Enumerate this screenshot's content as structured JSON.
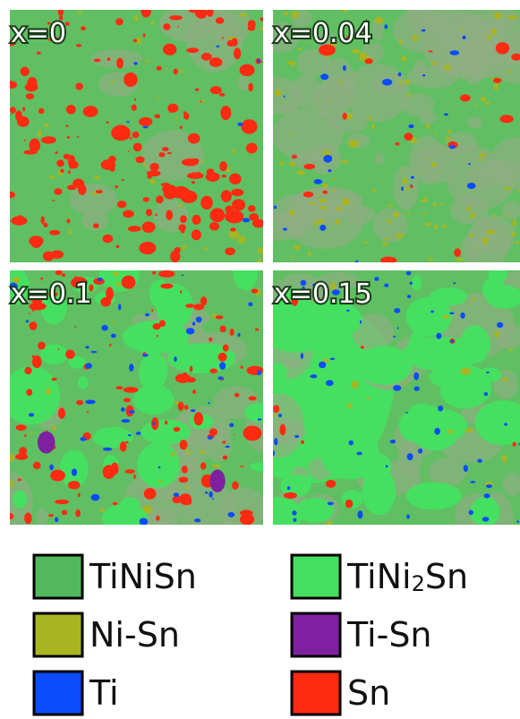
{
  "panels": [
    {
      "label": "x=0"
    },
    {
      "label": "x=0.04"
    },
    {
      "label": "x=0.1"
    },
    {
      "label": "x=0.15"
    }
  ],
  "legend": [
    {
      "parts": [
        "TiNiSn"
      ],
      "color": "#52b85c"
    },
    {
      "parts": [
        "TiNi",
        "2",
        "Sn"
      ],
      "color": "#46e060"
    },
    {
      "parts": [
        "Ni-Sn"
      ],
      "color": "#a9b520"
    },
    {
      "parts": [
        "Ti-Sn"
      ],
      "color": "#7e20a0"
    },
    {
      "parts": [
        "Ti"
      ],
      "color": "#0b4cff"
    },
    {
      "parts": [
        "Sn"
      ],
      "color": "#ff2a12"
    }
  ]
}
